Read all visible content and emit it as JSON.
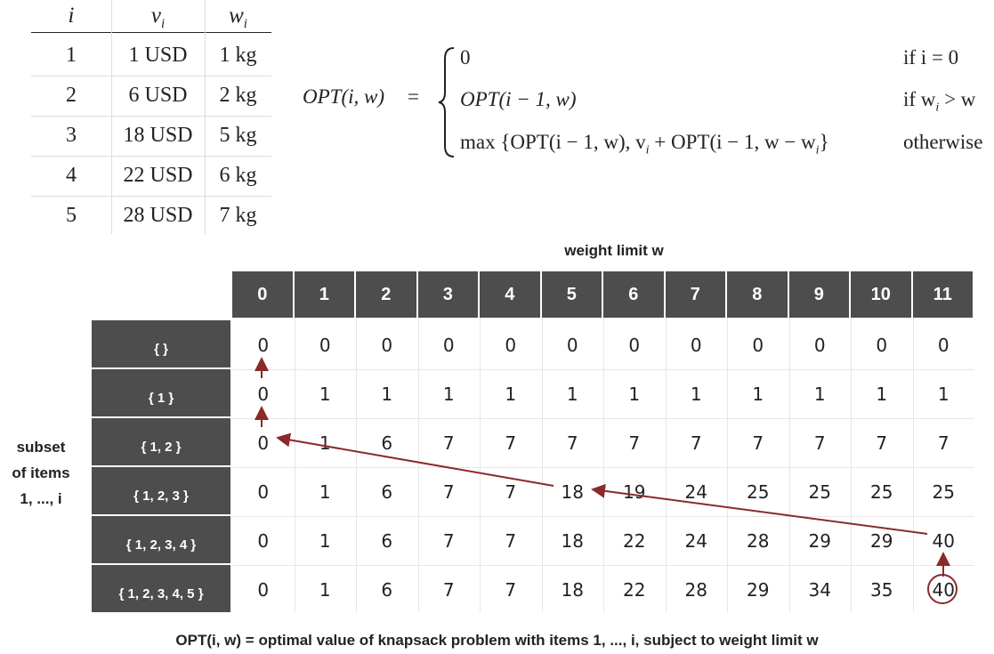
{
  "items_table": {
    "headers": [
      "i",
      "v",
      "w"
    ],
    "header_sub": "i",
    "rows": [
      [
        "1",
        "1 USD",
        "1 kg"
      ],
      [
        "2",
        "6 USD",
        "2 kg"
      ],
      [
        "3",
        "18 USD",
        "5 kg"
      ],
      [
        "4",
        "22 USD",
        "6 kg"
      ],
      [
        "5",
        "28 USD",
        "7 kg"
      ]
    ]
  },
  "formula": {
    "lhs": "OPT(i, w)",
    "eq": "=",
    "case1_value": "0",
    "case1_cond": "if i = 0",
    "case2_value": "OPT(i − 1, w)",
    "case2_cond": "if w",
    "case2_cond_sub": "i",
    "case2_cond_rest": " > w",
    "case3_value": "max {OPT(i − 1, w), v",
    "case3_sub1": "i",
    "case3_mid": " + OPT(i − 1, w − w",
    "case3_sub2": "i",
    "case3_end": "}",
    "case3_cond": "otherwise"
  },
  "grid": {
    "top_label": "weight limit w",
    "side_label_lines": [
      "subset",
      "of items",
      "1, ..., i"
    ],
    "columns": [
      "0",
      "1",
      "2",
      "3",
      "4",
      "5",
      "6",
      "7",
      "8",
      "9",
      "10",
      "11"
    ],
    "rows": [
      {
        "label": "{ }",
        "values": [
          "0",
          "0",
          "0",
          "0",
          "0",
          "0",
          "0",
          "0",
          "0",
          "0",
          "0",
          "0"
        ]
      },
      {
        "label": "{ 1 }",
        "values": [
          "0",
          "1",
          "1",
          "1",
          "1",
          "1",
          "1",
          "1",
          "1",
          "1",
          "1",
          "1"
        ]
      },
      {
        "label": "{ 1, 2 }",
        "values": [
          "0",
          "1",
          "6",
          "7",
          "7",
          "7",
          "7",
          "7",
          "7",
          "7",
          "7",
          "7"
        ]
      },
      {
        "label": "{ 1, 2, 3 }",
        "values": [
          "0",
          "1",
          "6",
          "7",
          "7",
          "18",
          "19",
          "24",
          "25",
          "25",
          "25",
          "25"
        ]
      },
      {
        "label": "{ 1, 2, 3, 4 }",
        "values": [
          "0",
          "1",
          "6",
          "7",
          "7",
          "18",
          "22",
          "24",
          "28",
          "29",
          "29",
          "40"
        ]
      },
      {
        "label": "{ 1, 2, 3, 4, 5 }",
        "values": [
          "0",
          "1",
          "6",
          "7",
          "7",
          "18",
          "22",
          "28",
          "29",
          "34",
          "35",
          "40"
        ]
      }
    ],
    "highlight_cell": {
      "row": 5,
      "col": 11
    },
    "trace_color": "#8b2a2a"
  },
  "caption": "OPT(i, w) = optimal value of knapsack problem with items 1, ..., i, subject to weight limit w"
}
